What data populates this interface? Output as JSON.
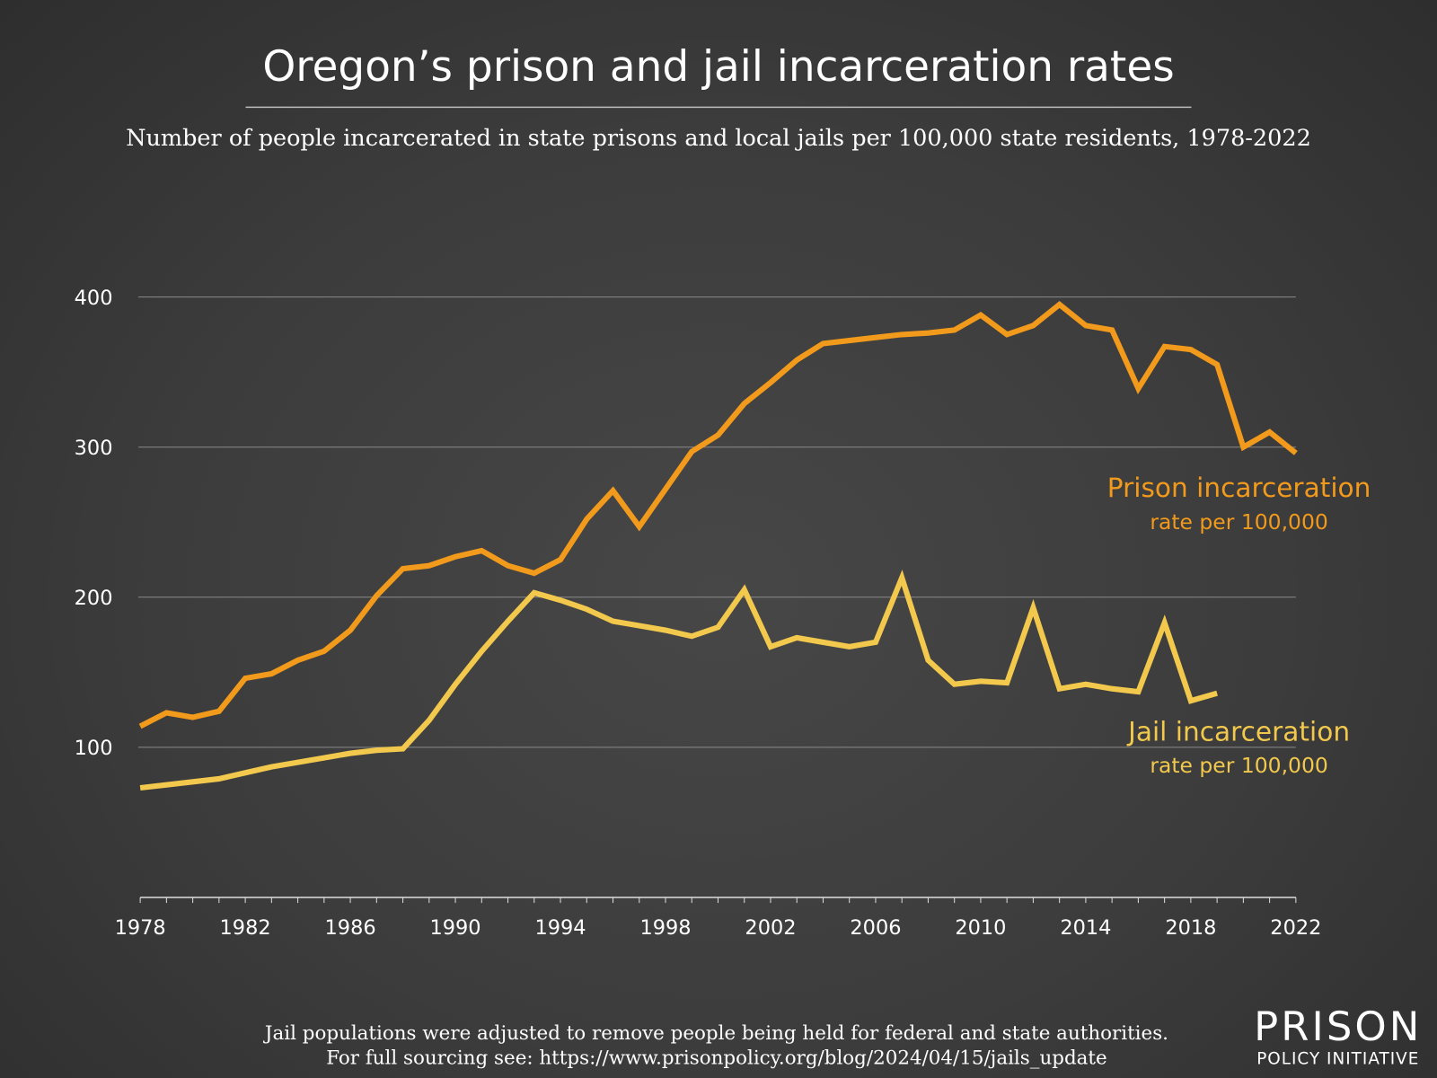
{
  "chart_data": {
    "type": "line",
    "title": "Oregon’s prison and jail incarceration rates",
    "subtitle": "Number of people incarcerated in state prisons and local jails per 100,000 state residents, 1978-2022",
    "xlabel": "",
    "ylabel": "",
    "xlim": [
      1978,
      2022
    ],
    "ylim": [
      0,
      400
    ],
    "grid": true,
    "x_ticks": [
      "1978",
      "1982",
      "1986",
      "1990",
      "1994",
      "1998",
      "2002",
      "2006",
      "2010",
      "2014",
      "2018",
      "2022"
    ],
    "y_ticks": [
      "100",
      "200",
      "300",
      "400"
    ],
    "series": [
      {
        "name": "Prison incarceration",
        "sublabel": "rate per 100,000",
        "color": "#f29a1b",
        "x": [
          1978,
          1979,
          1980,
          1981,
          1982,
          1983,
          1984,
          1985,
          1986,
          1987,
          1988,
          1989,
          1990,
          1991,
          1992,
          1993,
          1994,
          1995,
          1996,
          1997,
          1998,
          1999,
          2000,
          2001,
          2002,
          2003,
          2004,
          2005,
          2006,
          2007,
          2008,
          2009,
          2010,
          2011,
          2012,
          2013,
          2014,
          2015,
          2016,
          2017,
          2018,
          2019,
          2020,
          2021,
          2022
        ],
        "values": [
          114,
          123,
          120,
          124,
          146,
          149,
          158,
          164,
          178,
          201,
          219,
          221,
          227,
          231,
          221,
          216,
          225,
          252,
          271,
          247,
          272,
          297,
          308,
          329,
          343,
          358,
          369,
          371,
          373,
          375,
          376,
          378,
          388,
          375,
          381,
          395,
          381,
          378,
          339,
          367,
          365,
          355,
          300,
          310,
          296
        ]
      },
      {
        "name": "Jail incarceration",
        "sublabel": "rate per 100,000",
        "color": "#f2c94c",
        "x": [
          1978,
          1979,
          1980,
          1981,
          1982,
          1983,
          1984,
          1985,
          1986,
          1987,
          1988,
          1989,
          1990,
          1991,
          1992,
          1993,
          1994,
          1995,
          1996,
          1997,
          1998,
          1999,
          2000,
          2001,
          2002,
          2003,
          2004,
          2005,
          2006,
          2007,
          2008,
          2009,
          2010,
          2011,
          2012,
          2013,
          2014,
          2015,
          2016,
          2017,
          2018,
          2019
        ],
        "values": [
          73,
          75,
          77,
          79,
          83,
          87,
          90,
          93,
          96,
          98,
          99,
          118,
          142,
          164,
          184,
          203,
          198,
          192,
          184,
          181,
          178,
          174,
          180,
          205,
          167,
          173,
          170,
          167,
          170,
          213,
          158,
          142,
          144,
          143,
          193,
          139,
          142,
          139,
          137,
          183,
          131,
          136
        ]
      }
    ],
    "footnote": [
      "Jail populations were adjusted to remove people being held for federal and state authorities.",
      "For full sourcing see: https://www.prisonpolicy.org/blog/2024/04/15/jails_update"
    ],
    "logo": {
      "line1": "PRISON",
      "line2": "POLICY INITIATIVE"
    },
    "background_color": "#3c3c3c"
  }
}
